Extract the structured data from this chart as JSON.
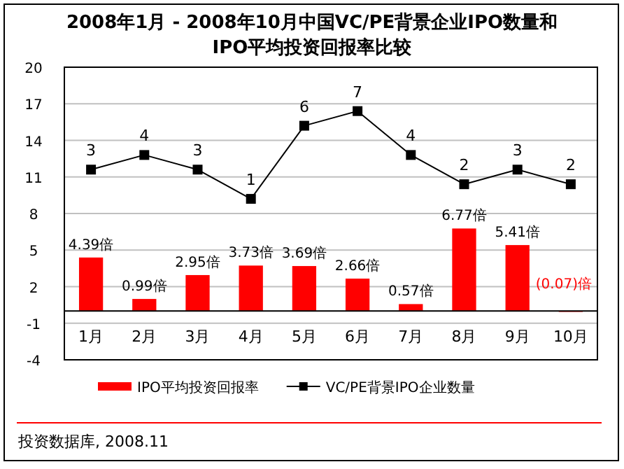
{
  "chart_data": {
    "type": "bar",
    "title": "2008年1月 - 2008年10月中国VC/PE背景企业IPO数量和IPO平均投资回报率比较",
    "categories": [
      "1月",
      "2月",
      "3月",
      "4月",
      "5月",
      "6月",
      "7月",
      "8月",
      "9月",
      "10月"
    ],
    "series": [
      {
        "name": "IPO平均投资回报率",
        "color": "#ff0000",
        "values": [
          4.39,
          0.99,
          2.95,
          3.73,
          3.69,
          2.66,
          0.57,
          6.77,
          5.41,
          -0.07
        ],
        "value_labels": [
          "4.39倍",
          "0.99倍",
          "2.95倍",
          "3.73倍",
          "3.69倍",
          "2.66倍",
          "0.57倍",
          "6.77倍",
          "5.41倍",
          "(0.07)倍"
        ]
      },
      {
        "name": "VC/PE背景IPO企业数量",
        "type": "line",
        "axis": "y2",
        "color": "#000000",
        "marker": "square",
        "values": [
          3,
          4,
          3,
          1,
          6,
          7,
          4,
          2,
          3,
          2
        ],
        "value_labels": [
          "3",
          "4",
          "3",
          "1",
          "6",
          "7",
          "4",
          "2",
          "3",
          "2"
        ]
      }
    ],
    "ylim": [
      -4,
      20
    ],
    "yticks": [
      -4,
      -1,
      2,
      5,
      8,
      11,
      14,
      17,
      20
    ],
    "y2lim": [
      -10,
      10
    ],
    "grid": "y",
    "legend": "bottom",
    "annotations": [
      "投资数据库, 2008.11"
    ]
  }
}
